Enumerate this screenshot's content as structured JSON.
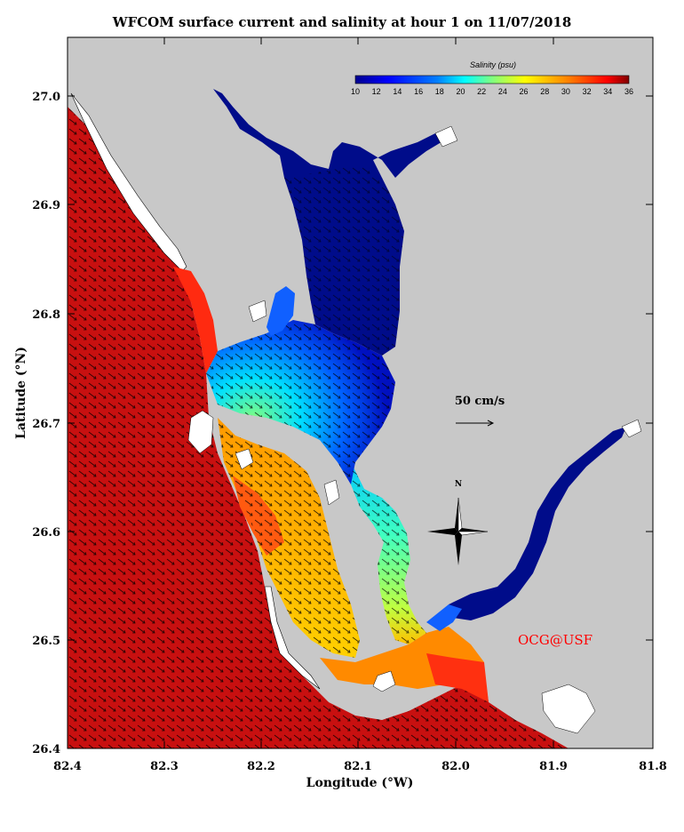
{
  "title": "WFCOM surface current and salinity at hour 1 on 11/07/2018",
  "axes": {
    "xlabel": "Longitude (°W)",
    "ylabel": "Latitude (°N)",
    "xticks": [
      "82.4",
      "82.3",
      "82.2",
      "82.1",
      "82.0",
      "81.9",
      "81.8"
    ],
    "yticks": [
      "27.0",
      "26.9",
      "26.8",
      "26.7",
      "26.6",
      "26.5",
      "26.4"
    ],
    "xlim": [
      82.4,
      81.8
    ],
    "ylim": [
      26.4,
      27.05
    ]
  },
  "colorbar": {
    "title": "Salinity (psu)",
    "ticks": [
      "10",
      "12",
      "14",
      "16",
      "18",
      "20",
      "22",
      "24",
      "26",
      "28",
      "30",
      "32",
      "34",
      "36"
    ],
    "range": [
      10,
      36
    ]
  },
  "scale_arrow": {
    "label": "50 cm/s"
  },
  "north_arrow": {
    "label": "N"
  },
  "credit": {
    "text": "OCG@USF",
    "color": "#ff0000"
  },
  "colors": {
    "land": "#c8c8c8",
    "gulf": "#c81010",
    "upper_harbor": "#000c8a",
    "background": "#ffffff"
  }
}
